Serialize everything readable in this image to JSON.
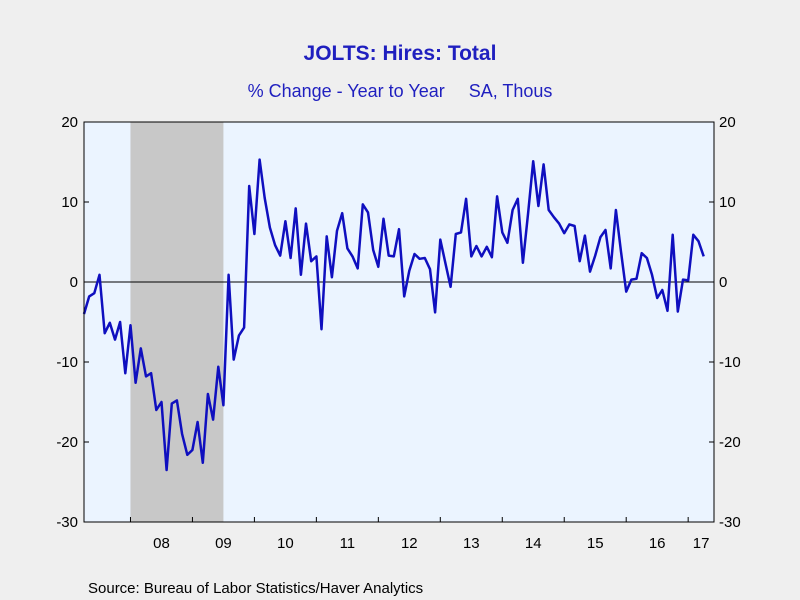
{
  "chart_data": {
    "type": "line",
    "title": "JOLTS: Hires: Total",
    "subtitle_parts": [
      "% Change - Year to Year",
      "SA, Thous"
    ],
    "source": "Source:  Bureau of Labor Statistics/Haver Analytics",
    "xlabel": "",
    "ylabel": "",
    "ylim": [
      -30,
      20
    ],
    "yticks": [
      20,
      10,
      0,
      -10,
      -20,
      -30
    ],
    "xlim": [
      2007.25,
      2017.417
    ],
    "x_tick_labels": [
      "08",
      "09",
      "10",
      "11",
      "12",
      "13",
      "14",
      "15",
      "16",
      "17"
    ],
    "recession_shade": {
      "start": 2008.0,
      "end": 2009.5,
      "color": "#c8c8c8"
    },
    "plot_background": "#ebf4ff",
    "line_color": "#0f0fbf",
    "grid": false,
    "zero_line": true,
    "series": [
      {
        "x_start": 2007.25,
        "x_step": 0.0833333,
        "values": [
          -4.0,
          -1.8,
          -1.4,
          0.9,
          -6.4,
          -5.1,
          -7.2,
          -5.0,
          -11.4,
          -5.4,
          -12.6,
          -8.3,
          -11.8,
          -11.4,
          -16.0,
          -15.0,
          -23.5,
          -15.2,
          -14.8,
          -19.0,
          -21.6,
          -21.0,
          -17.5,
          -22.6,
          -14.0,
          -17.2,
          -10.6,
          -15.4,
          0.9,
          -9.7,
          -6.7,
          -5.7,
          12.0,
          6.0,
          15.3,
          10.5,
          6.8,
          4.6,
          3.3,
          7.6,
          3.0,
          9.2,
          0.9,
          7.3,
          2.6,
          3.2,
          -5.9,
          5.7,
          0.6,
          6.4,
          8.6,
          4.2,
          3.2,
          1.7,
          9.7,
          8.7,
          4.0,
          1.9,
          7.9,
          3.3,
          3.2,
          6.6,
          -1.8,
          1.4,
          3.5,
          2.9,
          3.0,
          1.6,
          -3.8,
          5.3,
          2.3,
          -0.6,
          6.0,
          6.2,
          10.4,
          3.2,
          4.5,
          3.2,
          4.4,
          3.1,
          10.7,
          6.2,
          4.9,
          9.0,
          10.4,
          2.4,
          8.6,
          15.1,
          9.5,
          14.7,
          9.0,
          8.1,
          7.3,
          6.1,
          7.2,
          7.0,
          2.6,
          5.8,
          1.3,
          3.3,
          5.6,
          6.5,
          1.7,
          9.0,
          3.8,
          -1.2,
          0.3,
          0.4,
          3.6,
          3.0,
          0.9,
          -2.0,
          -1.0,
          -3.6,
          5.9,
          -3.7,
          0.3,
          0.2,
          5.9,
          5.1,
          3.2
        ]
      }
    ]
  }
}
